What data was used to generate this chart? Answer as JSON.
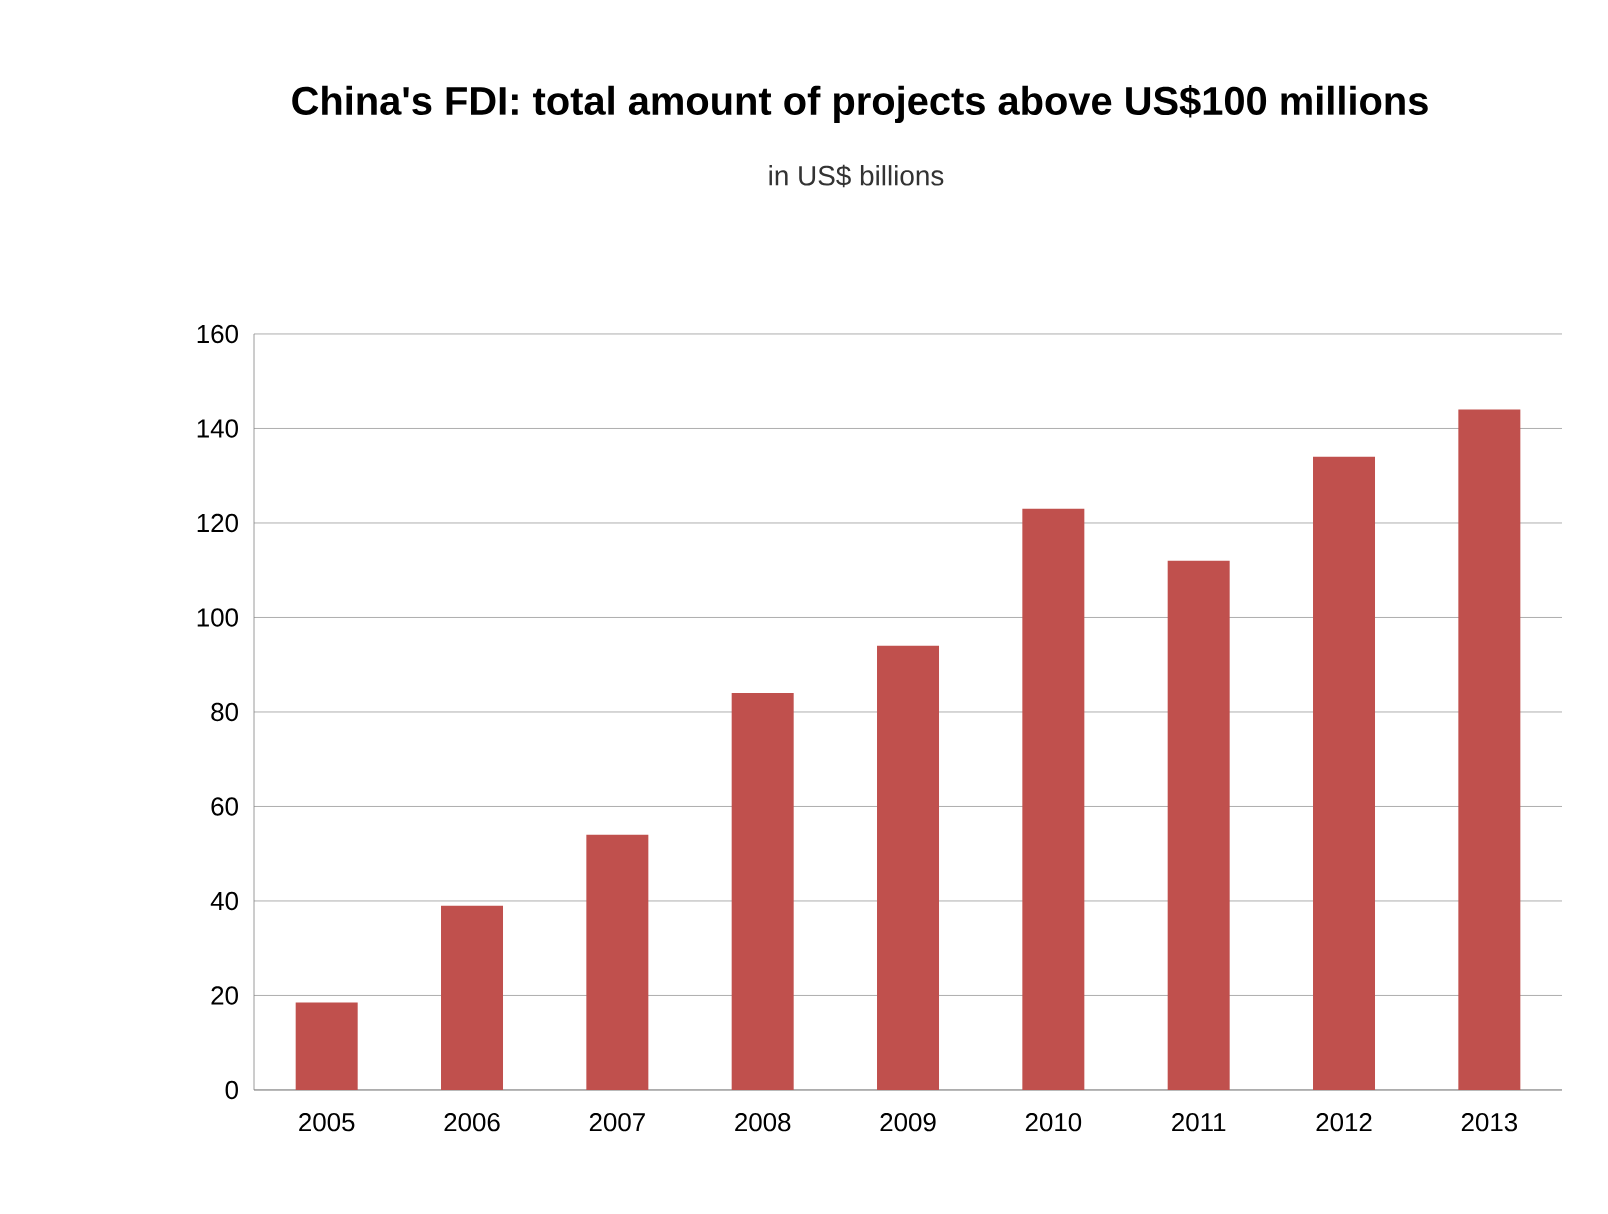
{
  "chart_data": {
    "type": "bar",
    "title": "China's FDI: total amount of projects above US$100 millions",
    "subtitle": "in US$ billions",
    "categories": [
      "2005",
      "2006",
      "2007",
      "2008",
      "2009",
      "2010",
      "2011",
      "2012",
      "2013"
    ],
    "values": [
      18.5,
      39,
      54,
      84,
      94,
      123,
      112,
      134,
      144
    ],
    "color": "#c0504d",
    "ylim": [
      0,
      160
    ],
    "yticks": [
      0,
      20,
      40,
      60,
      80,
      100,
      120,
      140,
      160
    ],
    "grid": "y"
  }
}
